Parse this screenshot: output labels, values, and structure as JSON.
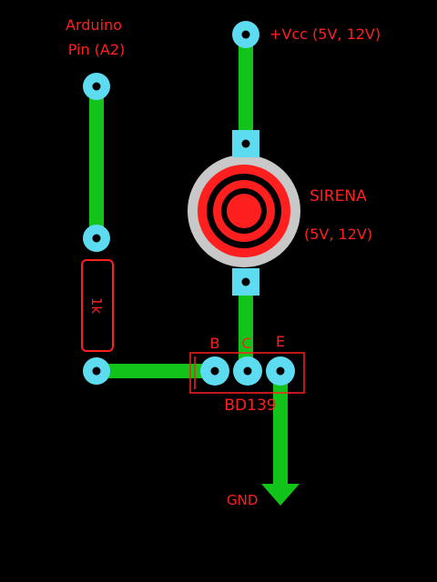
{
  "labels": {
    "arduino_line1": "Arduino",
    "arduino_line2": "Pin (A2)",
    "vcc": "+Vcc (5V, 12V)",
    "siren_name": "SIRENA",
    "siren_voltage": "(5V, 12V)",
    "resistor_value": "1k",
    "pin_b": "B",
    "pin_c": "C",
    "pin_e": "E",
    "transistor_name": "BD139",
    "gnd": "GND"
  },
  "colors": {
    "background": "#000000",
    "trace": "#12c41a",
    "pad": "#5ddbf0",
    "silkscreen": "#ff1f1f",
    "siren_ring": "#c8c8c8"
  },
  "icons": {
    "gnd_symbol": "down-arrow-icon"
  }
}
